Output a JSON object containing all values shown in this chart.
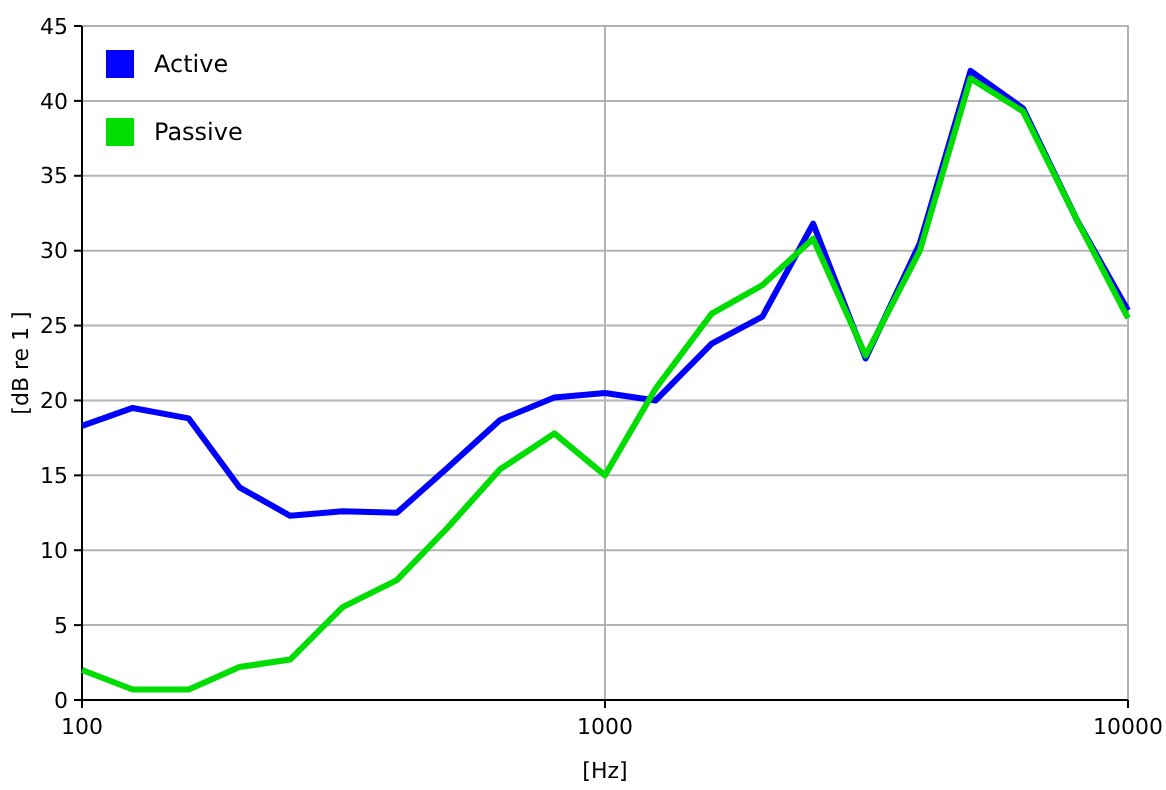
{
  "chart_data": {
    "type": "line",
    "xlabel": "[Hz]",
    "ylabel": "[dB re 1 ]",
    "x": [
      100,
      125,
      160,
      200,
      250,
      315,
      400,
      500,
      630,
      800,
      1000,
      1250,
      1600,
      2000,
      2500,
      3150,
      4000,
      5000,
      6300,
      8000,
      10000
    ],
    "series": [
      {
        "name": "Active",
        "color": "#0000ff",
        "values": [
          18.3,
          19.5,
          18.8,
          14.2,
          12.3,
          12.6,
          12.5,
          15.5,
          18.7,
          20.2,
          20.5,
          20,
          23.8,
          25.6,
          31.8,
          22.8,
          30.5,
          42,
          39.5,
          32,
          26
        ]
      },
      {
        "name": "Passive",
        "color": "#00dd00",
        "values": [
          2,
          0.7,
          0.7,
          2.2,
          2.7,
          6.2,
          8,
          11.5,
          15.4,
          17.8,
          15,
          20.8,
          25.8,
          27.7,
          30.8,
          23,
          30,
          41.5,
          39.3,
          32,
          25.5
        ]
      }
    ],
    "log": "x",
    "xlim": [
      100,
      10000
    ],
    "xticks": [
      100,
      1000,
      10000
    ],
    "ylim": [
      0,
      45
    ],
    "yticks": [
      0,
      5,
      10,
      15,
      20,
      25,
      30,
      35,
      40,
      45
    ],
    "grid": true,
    "legend": "top left",
    "line_style": "solid",
    "marker": "none"
  }
}
